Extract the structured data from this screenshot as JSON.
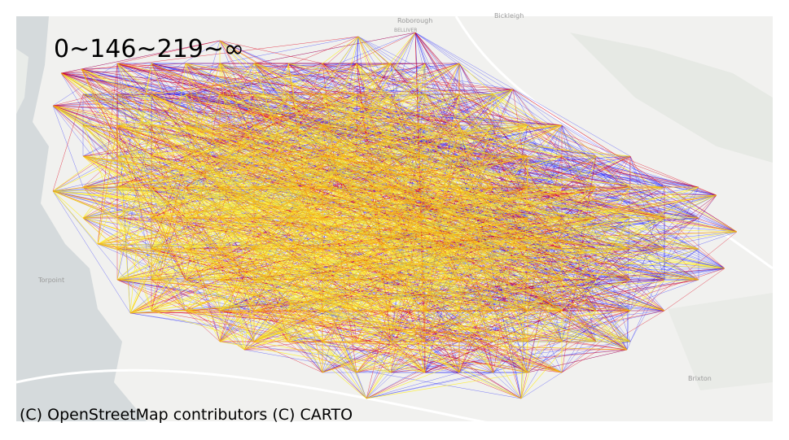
{
  "legend": "0~146~219~∞",
  "attribution": "(C) OpenStreetMap contributors (C) CARTO",
  "map_labels": [
    "Roborough",
    "BELLIVER",
    "Bickleigh",
    "Torpoint",
    "Brixton"
  ]
}
